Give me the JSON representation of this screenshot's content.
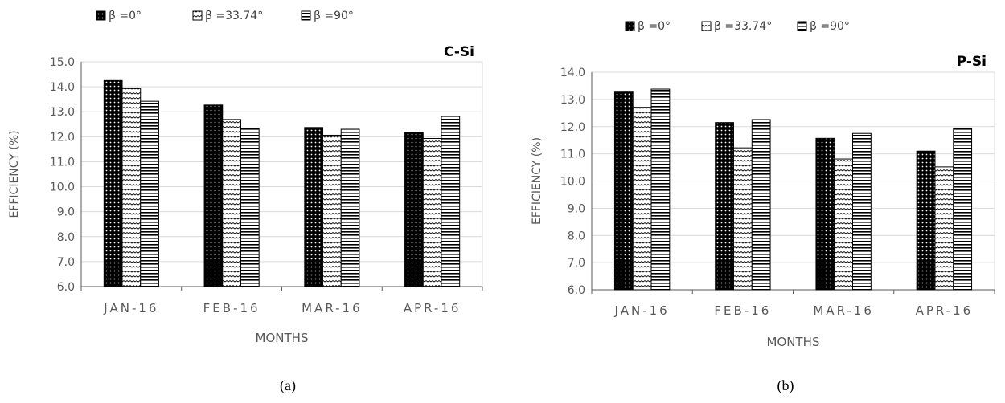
{
  "chart_data": [
    {
      "type": "bar",
      "title": "C-Si",
      "xlabel": "MONTHS",
      "ylabel": "EFFICIENCY (%)",
      "categories": [
        "JAN-16",
        "FEB-16",
        "MAR-16",
        "APR-16"
      ],
      "ylim": [
        6.0,
        15.0
      ],
      "yticks": [
        "6.0",
        "7.0",
        "8.0",
        "9.0",
        "10.0",
        "11.0",
        "12.0",
        "13.0",
        "14.0",
        "15.0"
      ],
      "grid": true,
      "legend_position": "top",
      "series": [
        {
          "name": "β =0°",
          "values": [
            14.25,
            13.27,
            12.37,
            12.17
          ],
          "pattern": "dots"
        },
        {
          "name": "β =33.74°",
          "values": [
            13.93,
            12.69,
            12.06,
            11.93
          ],
          "pattern": "waves"
        },
        {
          "name": "β =90°",
          "values": [
            13.42,
            12.34,
            12.3,
            12.82
          ],
          "pattern": "stripes"
        }
      ],
      "caption": "(a)"
    },
    {
      "type": "bar",
      "title": "P-Si",
      "xlabel": "MONTHS",
      "ylabel": "EFFICIENCY (%)",
      "categories": [
        "JAN-16",
        "FEB-16",
        "MAR-16",
        "APR-16"
      ],
      "ylim": [
        6.0,
        14.0
      ],
      "yticks": [
        "6.0",
        "7.0",
        "8.0",
        "9.0",
        "10.0",
        "11.0",
        "12.0",
        "13.0",
        "14.0"
      ],
      "grid": true,
      "legend_position": "top",
      "series": [
        {
          "name": "β =0°",
          "values": [
            13.3,
            12.15,
            11.57,
            11.1
          ],
          "pattern": "dots"
        },
        {
          "name": "β =33.74°",
          "values": [
            12.71,
            11.22,
            10.81,
            10.52
          ],
          "pattern": "waves"
        },
        {
          "name": "β =90°",
          "values": [
            13.38,
            12.26,
            11.75,
            11.92
          ],
          "pattern": "stripes"
        }
      ],
      "caption": "(b)"
    }
  ]
}
